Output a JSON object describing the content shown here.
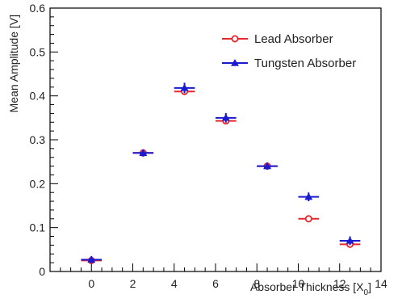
{
  "chart_data": {
    "type": "scatter",
    "xlabel": "Absorber Thickness [X",
    "xlabel_sub": "0",
    "xlabel_end": "]",
    "ylabel": "Mean Amplitude [V]",
    "xlim": [
      -2,
      14
    ],
    "ylim": [
      0,
      0.6
    ],
    "x_ticks": [
      0,
      2,
      4,
      6,
      8,
      10,
      12,
      14
    ],
    "y_ticks": [
      0,
      0.1,
      0.2,
      0.3,
      0.4,
      0.5,
      0.6
    ],
    "y_tick_labels": [
      "0",
      "0.1",
      "0.2",
      "0.3",
      "0.4",
      "0.5",
      "0.6"
    ],
    "grid": false,
    "legend_position": "top-right",
    "series": [
      {
        "name": "Lead Absorber",
        "color": "#e8262b",
        "marker": "open-circle",
        "x": [
          0,
          2.5,
          4.5,
          6.5,
          8.5,
          10.5,
          12.5
        ],
        "y": [
          0.025,
          0.27,
          0.41,
          0.343,
          0.24,
          0.12,
          0.062
        ],
        "yerr": [
          0.007,
          0.006,
          0.008,
          0.008,
          0.006,
          0.005,
          0.007
        ],
        "xerr": [
          0.5,
          0.5,
          0.5,
          0.5,
          0.5,
          0.5,
          0.5
        ]
      },
      {
        "name": "Tungsten Absorber",
        "color": "#1a1ad1",
        "marker": "filled-triangle",
        "x": [
          0,
          2.5,
          4.5,
          6.5,
          8.5,
          10.5,
          12.5
        ],
        "y": [
          0.027,
          0.27,
          0.418,
          0.35,
          0.24,
          0.17,
          0.07
        ],
        "yerr": [
          0.008,
          0.008,
          0.012,
          0.011,
          0.008,
          0.01,
          0.01
        ],
        "xerr": [
          0.5,
          0.5,
          0.5,
          0.5,
          0.5,
          0.5,
          0.5
        ]
      }
    ]
  }
}
